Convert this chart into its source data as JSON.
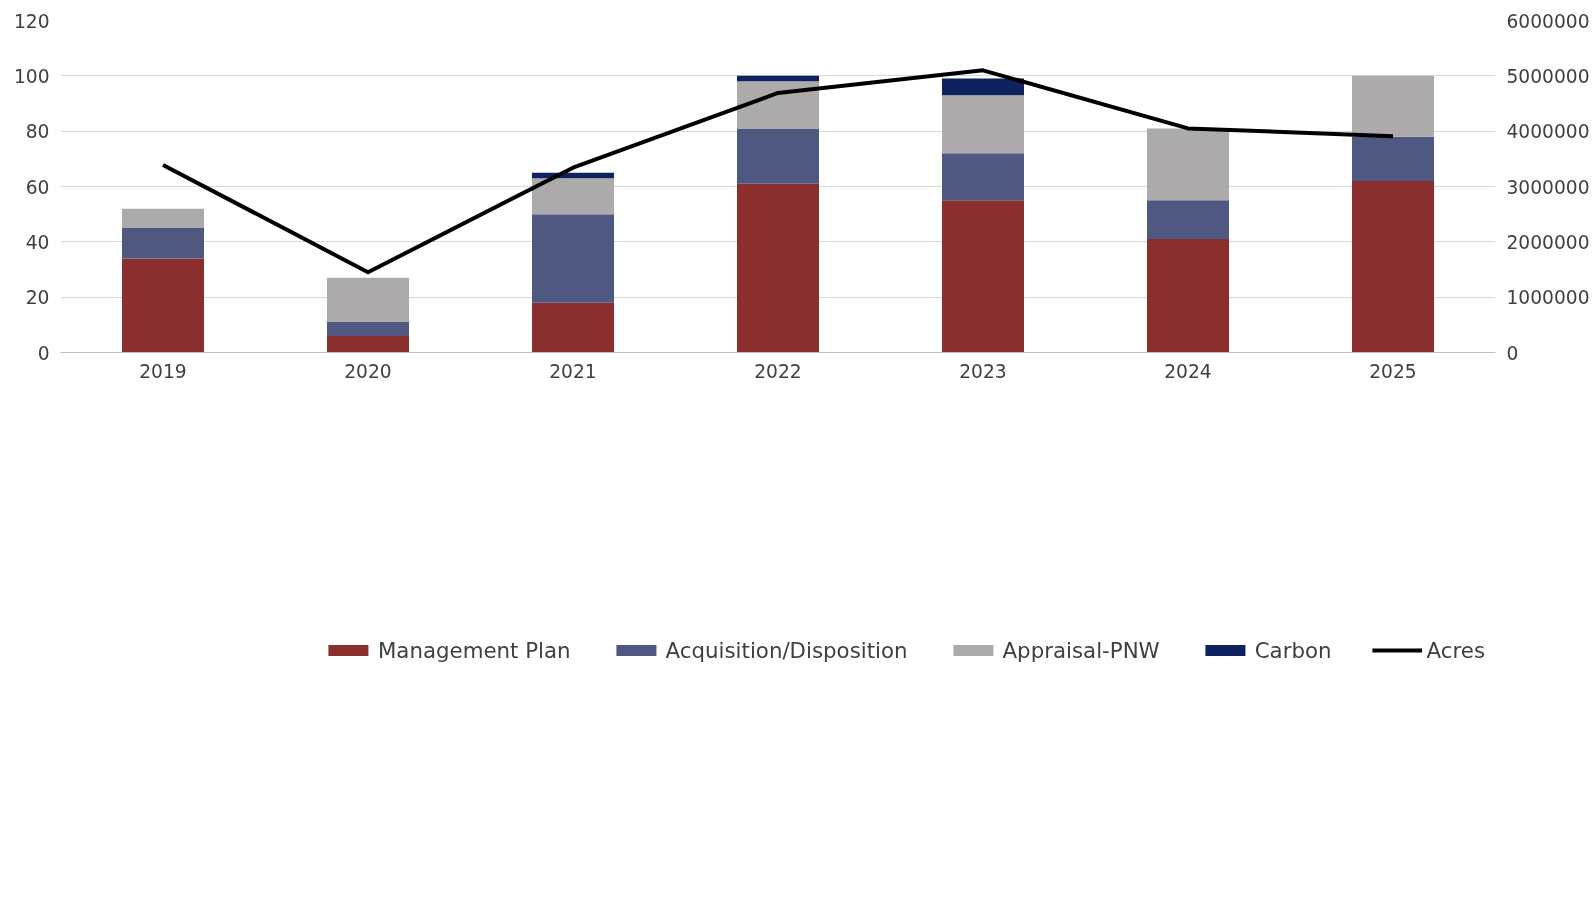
{
  "chart_data": {
    "type": "bar",
    "stacked": true,
    "categories": [
      "2019",
      "2020",
      "2021",
      "2022",
      "2023",
      "2024",
      "2025"
    ],
    "series": [
      {
        "name": "Management Plan",
        "color": "#8b2e2e",
        "values": [
          34,
          6,
          18,
          61,
          55,
          41,
          62
        ]
      },
      {
        "name": "Acquisition/Disposition",
        "color": "#4e5880",
        "values": [
          11,
          5,
          32,
          20,
          17,
          14,
          16
        ]
      },
      {
        "name": "Appraisal-PNW",
        "color": "#acaaaa",
        "values": [
          7,
          16,
          13,
          17,
          21,
          26,
          22
        ]
      },
      {
        "name": "Carbon",
        "color": "#0f2260",
        "values": [
          0,
          0,
          2,
          2,
          6,
          0,
          0
        ]
      },
      {
        "name": "Acres",
        "color": "#000000",
        "type": "line",
        "axis": "y2",
        "values": [
          3390000,
          1450000,
          3340000,
          4690000,
          5100000,
          4050000,
          3910000
        ]
      }
    ],
    "ylim": [
      0,
      120
    ],
    "yticks": [
      0,
      20,
      40,
      60,
      80,
      100,
      120
    ],
    "y2lim": [
      0,
      6000000
    ],
    "y2ticks": [
      0,
      1000000,
      2000000,
      3000000,
      4000000,
      5000000,
      6000000
    ],
    "grid": "y",
    "legend": "bottom",
    "marker": "none",
    "line_style": "solid"
  }
}
